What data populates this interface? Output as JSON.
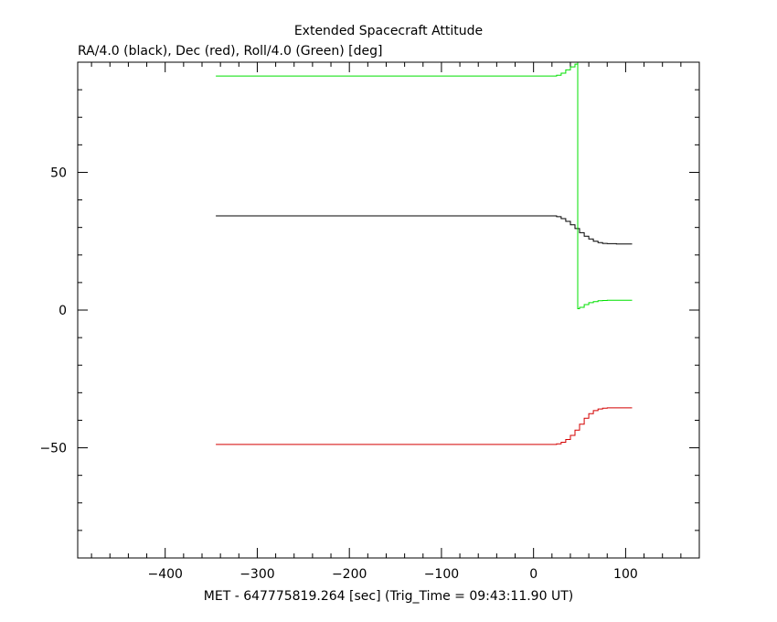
{
  "chart_data": {
    "type": "line",
    "title": "Extended Spacecraft Attitude",
    "ylabel": "RA/4.0 (black), Dec (red), Roll/4.0 (Green) [deg]",
    "xlabel": "MET - 647775819.264 [sec] (Trig_Time = 09:43:11.90 UT)",
    "xlim": [
      -495,
      180
    ],
    "ylim": [
      -90,
      90
    ],
    "xticks": [
      -400,
      -300,
      -200,
      -100,
      0,
      100
    ],
    "yticks": [
      -50,
      0,
      50
    ],
    "grid": false,
    "series": [
      {
        "color": "#000000",
        "x": [
          -345,
          20,
          25,
          30,
          35,
          40,
          45,
          50,
          55,
          60,
          65,
          70,
          75,
          80,
          90,
          100,
          107
        ],
        "y": [
          34.2,
          34.2,
          33.9,
          33.2,
          32.2,
          31.0,
          29.6,
          28.1,
          26.8,
          25.8,
          25.0,
          24.5,
          24.2,
          24.1,
          24.0,
          24.0,
          24.0
        ]
      },
      {
        "color": "#d40000",
        "x": [
          -345,
          20,
          25,
          30,
          35,
          40,
          45,
          50,
          55,
          60,
          65,
          70,
          75,
          80,
          90,
          100,
          107
        ],
        "y": [
          -48.8,
          -48.8,
          -48.6,
          -48.0,
          -47.0,
          -45.5,
          -43.6,
          -41.4,
          -39.3,
          -37.6,
          -36.5,
          -35.9,
          -35.6,
          -35.5,
          -35.5,
          -35.5,
          -35.5
        ]
      },
      {
        "color": "#00e000",
        "x": [
          -345,
          20,
          25,
          30,
          35,
          40,
          45,
          48,
          48,
          50,
          55,
          60,
          65,
          70,
          75,
          80,
          90,
          100,
          107
        ],
        "y": [
          85.0,
          85.0,
          85.3,
          86.0,
          87.2,
          88.3,
          89.3,
          90.0,
          0.5,
          1.0,
          2.0,
          2.7,
          3.1,
          3.4,
          3.5,
          3.6,
          3.6,
          3.6,
          3.6
        ]
      }
    ]
  }
}
